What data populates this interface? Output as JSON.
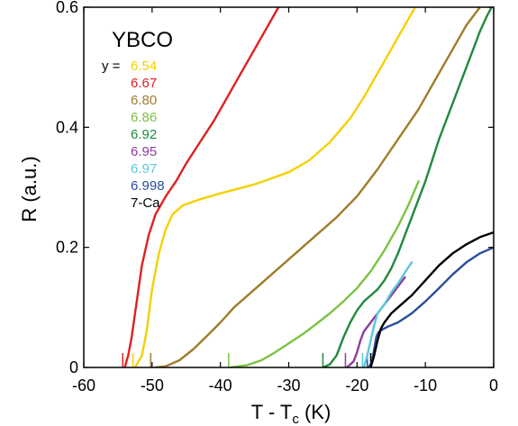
{
  "chart_data": {
    "type": "line",
    "title": "YBCO",
    "xlabel": {
      "main": "T - T",
      "sub": "c",
      "unit": " (K)"
    },
    "ylabel": "R (a.u.)",
    "xlim": [
      -60,
      0
    ],
    "ylim": [
      0,
      0.6
    ],
    "x_ticks": [
      -60,
      -50,
      -40,
      -30,
      -20,
      -10,
      0
    ],
    "x_tick_labels": [
      "-60",
      "-50",
      "-40",
      "-30",
      "-20",
      "-10",
      "0"
    ],
    "y_ticks": [
      0,
      0.2,
      0.4,
      0.6
    ],
    "y_tick_labels": [
      "0",
      "0.2",
      "0.4",
      "0.6"
    ],
    "grid": false,
    "legend_prefix": "y =",
    "legend_placement": "top-left",
    "series": [
      {
        "name": "6.54",
        "color": "#f5d000",
        "x": [
          -52.5,
          -51.5,
          -50.8,
          -50.0,
          -49.0,
          -48.0,
          -47.0,
          -45.5,
          -43.0,
          -40.0,
          -35.0,
          -30.0,
          -27.0,
          -24.0,
          -21.0,
          -19.0,
          -17.0,
          -15.0,
          -13.5,
          -12.5,
          -11.5
        ],
        "y": [
          0.0,
          0.02,
          0.06,
          0.13,
          0.19,
          0.23,
          0.255,
          0.27,
          0.28,
          0.29,
          0.305,
          0.325,
          0.345,
          0.375,
          0.415,
          0.45,
          0.49,
          0.53,
          0.56,
          0.58,
          0.6
        ]
      },
      {
        "name": "6.67",
        "color": "#e02020",
        "x": [
          -54.0,
          -53.5,
          -53.0,
          -52.5,
          -52.0,
          -51.5,
          -50.5,
          -49.5,
          -48.0,
          -46.5,
          -45.0,
          -43.0,
          -41.0,
          -39.0,
          -37.0,
          -35.0,
          -33.0,
          -31.5
        ],
        "y": [
          0.0,
          0.02,
          0.05,
          0.09,
          0.13,
          0.17,
          0.22,
          0.255,
          0.285,
          0.31,
          0.34,
          0.375,
          0.41,
          0.45,
          0.49,
          0.53,
          0.57,
          0.6
        ]
      },
      {
        "name": "6.80",
        "color": "#a07c2a",
        "x": [
          -49.5,
          -48.0,
          -46.0,
          -44.0,
          -42.0,
          -40.0,
          -38.0,
          -35.0,
          -32.0,
          -29.0,
          -26.0,
          -23.0,
          -20.0,
          -17.0,
          -14.0,
          -11.0,
          -8.0,
          -6.0,
          -4.0,
          -2.0
        ],
        "y": [
          0.0,
          0.002,
          0.012,
          0.03,
          0.052,
          0.075,
          0.1,
          0.13,
          0.16,
          0.19,
          0.22,
          0.25,
          0.285,
          0.33,
          0.38,
          0.43,
          0.49,
          0.53,
          0.57,
          0.6
        ]
      },
      {
        "name": "6.86",
        "color": "#7cc243",
        "x": [
          -38.5,
          -36.0,
          -34.0,
          -32.0,
          -30.0,
          -28.0,
          -26.0,
          -24.0,
          -22.0,
          -20.0,
          -18.0,
          -16.0,
          -14.0,
          -12.5,
          -11.0
        ],
        "y": [
          0.0,
          0.004,
          0.012,
          0.025,
          0.04,
          0.055,
          0.072,
          0.09,
          0.11,
          0.132,
          0.16,
          0.195,
          0.235,
          0.27,
          0.31
        ]
      },
      {
        "name": "6.92",
        "color": "#1f8a3c",
        "x": [
          -25.0,
          -24.0,
          -23.0,
          -22.5,
          -22.0,
          -21.0,
          -20.0,
          -19.0,
          -18.0,
          -17.0,
          -16.0,
          -15.0,
          -14.0,
          -13.0,
          -12.0,
          -10.0,
          -8.0,
          -6.0,
          -4.0,
          -3.0,
          -2.0,
          -1.0,
          -0.3
        ],
        "y": [
          0.0,
          0.005,
          0.02,
          0.035,
          0.05,
          0.075,
          0.095,
          0.11,
          0.12,
          0.13,
          0.145,
          0.165,
          0.19,
          0.22,
          0.25,
          0.31,
          0.38,
          0.44,
          0.5,
          0.53,
          0.56,
          0.585,
          0.6
        ]
      },
      {
        "name": "6.95",
        "color": "#8e3c9e",
        "x": [
          -21.5,
          -20.5,
          -20.0,
          -19.5,
          -19.0,
          -18.0,
          -17.0,
          -16.0,
          -15.0,
          -14.0,
          -13.0
        ],
        "y": [
          0.0,
          0.01,
          0.025,
          0.045,
          0.06,
          0.075,
          0.09,
          0.105,
          0.12,
          0.135,
          0.15
        ]
      },
      {
        "name": "6.97",
        "color": "#5bc8dc",
        "x": [
          -19.0,
          -18.5,
          -18.0,
          -17.5,
          -17.0,
          -16.0,
          -15.0,
          -14.0,
          -13.0,
          -12.0
        ],
        "y": [
          0.0,
          0.02,
          0.045,
          0.07,
          0.09,
          0.105,
          0.125,
          0.14,
          0.158,
          0.175
        ]
      },
      {
        "name": "6.998",
        "color": "#2b4c9c",
        "x": [
          -18.3,
          -17.8,
          -17.5,
          -17.2,
          -16.9,
          -16.5,
          -15.5,
          -14.0,
          -12.0,
          -10.0,
          -8.0,
          -6.0,
          -4.0,
          -2.0,
          0.0
        ],
        "y": [
          0.0,
          0.01,
          0.03,
          0.05,
          0.058,
          0.062,
          0.068,
          0.075,
          0.09,
          0.11,
          0.132,
          0.155,
          0.175,
          0.19,
          0.2
        ]
      },
      {
        "name": "7-Ca",
        "color": "#000000",
        "x": [
          -18.0,
          -17.5,
          -17.0,
          -16.5,
          -16.0,
          -15.0,
          -14.0,
          -12.0,
          -10.0,
          -8.0,
          -6.0,
          -4.0,
          -2.0,
          0.0
        ],
        "y": [
          0.0,
          0.02,
          0.045,
          0.065,
          0.075,
          0.09,
          0.1,
          0.12,
          0.145,
          0.17,
          0.19,
          0.205,
          0.217,
          0.225
        ]
      }
    ],
    "tc_markers": [
      {
        "x": -54.3,
        "color": "#e02020"
      },
      {
        "x": -52.8,
        "color": "#f5d000"
      },
      {
        "x": -50.2,
        "color": "#a07c2a"
      },
      {
        "x": -38.8,
        "color": "#7cc243"
      },
      {
        "x": -25.0,
        "color": "#1f8a3c"
      },
      {
        "x": -21.7,
        "color": "#8e3c9e"
      },
      {
        "x": -19.2,
        "color": "#5bc8dc"
      },
      {
        "x": -18.5,
        "color": "#2b4c9c"
      },
      {
        "x": -18.0,
        "color": "#000000"
      }
    ]
  }
}
